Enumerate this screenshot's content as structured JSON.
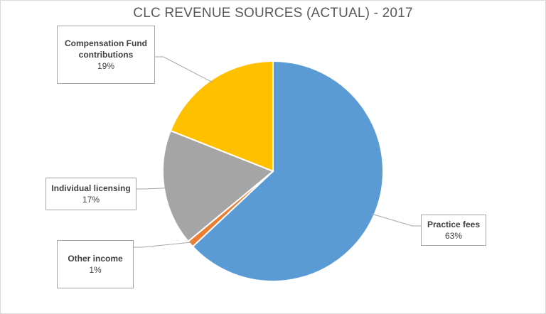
{
  "chart_data": {
    "type": "pie",
    "title": "CLC REVENUE SOURCES (ACTUAL) - 2017",
    "slices": [
      {
        "label": "Practice fees",
        "value": 63,
        "display": "63%",
        "color": "#5b9bd5"
      },
      {
        "label": "Other income",
        "value": 1,
        "display": "1%",
        "color": "#ed7d31"
      },
      {
        "label": "Individual licensing",
        "value": 17,
        "display": "17%",
        "color": "#a5a5a5"
      },
      {
        "label": "Compensation Fund contributions",
        "value": 19,
        "display": "19%",
        "color": "#ffc000"
      }
    ]
  }
}
